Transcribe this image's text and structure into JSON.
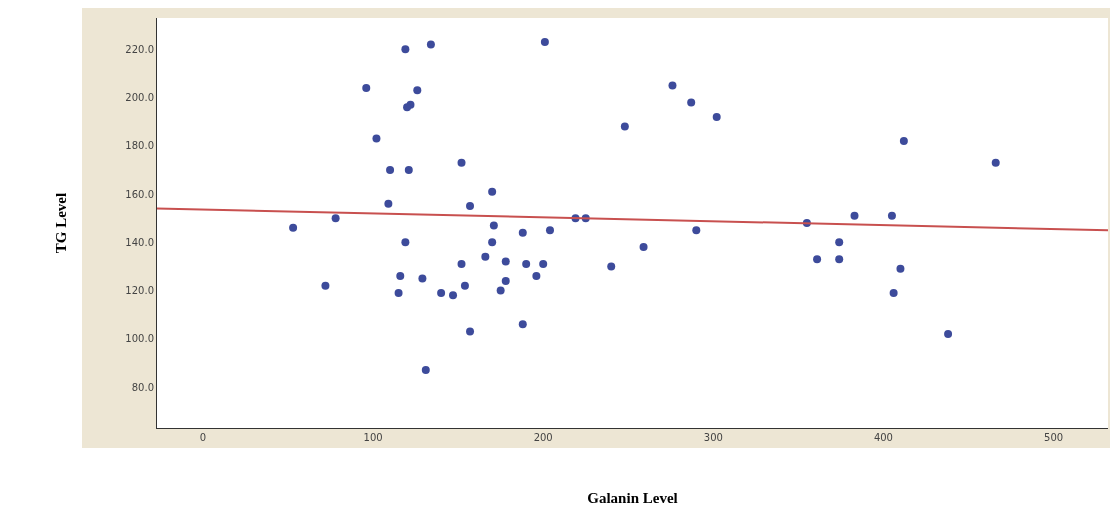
{
  "chart_data": {
    "type": "scatter",
    "xlabel": "Galanin Level",
    "ylabel": "TG Level",
    "xlim": [
      -27,
      532
    ],
    "xticks": [
      0,
      100,
      200,
      300,
      400,
      500
    ],
    "ylim": [
      63,
      233
    ],
    "yticks": [
      {
        "value": 80,
        "label": "80.0"
      },
      {
        "value": 100,
        "label": "100.0"
      },
      {
        "value": 120,
        "label": "120.0"
      },
      {
        "value": 140,
        "label": "140.0"
      },
      {
        "value": 160,
        "label": "160.0"
      },
      {
        "value": 180,
        "label": "180.0"
      },
      {
        "value": 200,
        "label": "200.0"
      },
      {
        "value": 220,
        "label": "220.0"
      }
    ],
    "grid": false,
    "legend": false,
    "series": [
      {
        "marker": "circle",
        "color": "#3d4b9b",
        "x": [
          53,
          72,
          78,
          96,
          102,
          110,
          121,
          109,
          119,
          134,
          126,
          122,
          120,
          119,
          116,
          115,
          129,
          131,
          140,
          147,
          152,
          152,
          154,
          157,
          157,
          166,
          170,
          171,
          170,
          175,
          178,
          178,
          188,
          188,
          190,
          196,
          200,
          201,
          204,
          219,
          225,
          240,
          248,
          259,
          276,
          287,
          290,
          302,
          355,
          361,
          374,
          374,
          383,
          405,
          406,
          410,
          412,
          438,
          466
        ],
        "values": [
          146,
          122,
          150,
          204,
          183,
          170,
          170,
          156,
          220,
          222,
          203,
          197,
          196,
          140,
          126,
          119,
          125,
          87,
          119,
          118,
          173,
          131,
          122,
          103,
          155,
          134,
          161,
          147,
          140,
          120,
          124,
          132,
          106,
          144,
          131,
          126,
          131,
          223,
          145,
          150,
          150,
          130,
          188,
          138,
          205,
          198,
          145,
          192,
          148,
          133,
          140,
          133,
          151,
          151,
          119,
          129,
          182,
          102,
          173
        ]
      },
      {
        "type": "line",
        "marker": "none",
        "color": "#c8504f",
        "line_style": "solid",
        "x": [
          -27,
          532
        ],
        "values": [
          154,
          145
        ]
      }
    ]
  }
}
